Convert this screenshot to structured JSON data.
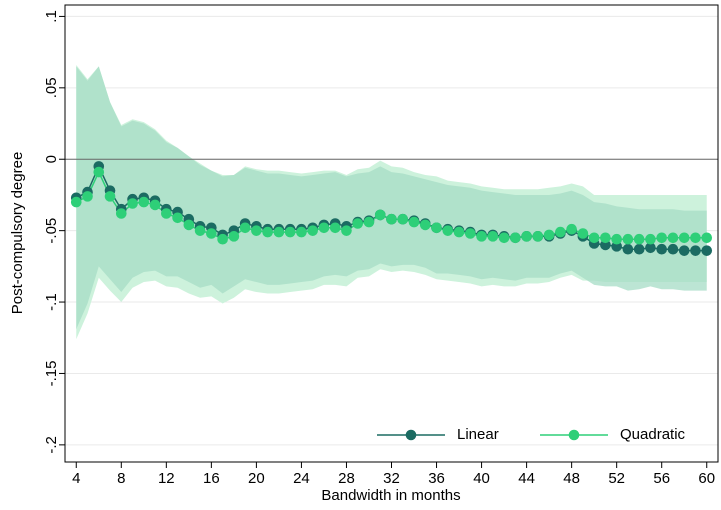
{
  "chart_data": {
    "type": "line",
    "x_label": "Bandwidth in months",
    "y_label": "Post-compulsory degree",
    "x": [
      4,
      5,
      6,
      7,
      8,
      9,
      10,
      11,
      12,
      13,
      14,
      15,
      16,
      17,
      18,
      19,
      20,
      21,
      22,
      23,
      24,
      25,
      26,
      27,
      28,
      29,
      30,
      31,
      32,
      33,
      34,
      35,
      36,
      37,
      38,
      39,
      40,
      41,
      42,
      43,
      44,
      45,
      46,
      47,
      48,
      49,
      50,
      51,
      52,
      53,
      54,
      55,
      56,
      57,
      58,
      59,
      60
    ],
    "series": [
      {
        "name": "Linear",
        "color": "#1b6b62",
        "ci_color": "#a6dcc6",
        "values": [
          -0.027,
          -0.023,
          -0.005,
          -0.022,
          -0.035,
          -0.028,
          -0.027,
          -0.029,
          -0.035,
          -0.037,
          -0.042,
          -0.047,
          -0.048,
          -0.053,
          -0.05,
          -0.045,
          -0.047,
          -0.049,
          -0.049,
          -0.049,
          -0.049,
          -0.048,
          -0.046,
          -0.045,
          -0.047,
          -0.044,
          -0.043,
          -0.039,
          -0.042,
          -0.042,
          -0.043,
          -0.045,
          -0.048,
          -0.049,
          -0.05,
          -0.051,
          -0.053,
          -0.053,
          -0.054,
          -0.055,
          -0.054,
          -0.054,
          -0.054,
          -0.052,
          -0.05,
          -0.054,
          -0.059,
          -0.06,
          -0.061,
          -0.063,
          -0.063,
          -0.062,
          -0.063,
          -0.063,
          -0.064,
          -0.064,
          -0.064
        ],
        "ci_upper": [
          0.065,
          0.055,
          0.065,
          0.04,
          0.023,
          0.027,
          0.025,
          0.02,
          0.012,
          0.008,
          0.002,
          -0.004,
          -0.008,
          -0.012,
          -0.011,
          -0.006,
          -0.008,
          -0.01,
          -0.01,
          -0.011,
          -0.012,
          -0.011,
          -0.01,
          -0.009,
          -0.012,
          -0.01,
          -0.009,
          -0.005,
          -0.009,
          -0.01,
          -0.012,
          -0.014,
          -0.016,
          -0.018,
          -0.019,
          -0.02,
          -0.022,
          -0.023,
          -0.024,
          -0.025,
          -0.025,
          -0.025,
          -0.025,
          -0.024,
          -0.022,
          -0.025,
          -0.03,
          -0.031,
          -0.033,
          -0.034,
          -0.035,
          -0.035,
          -0.035,
          -0.035,
          -0.036,
          -0.036,
          -0.036
        ],
        "ci_lower": [
          -0.119,
          -0.101,
          -0.075,
          -0.084,
          -0.093,
          -0.083,
          -0.079,
          -0.078,
          -0.082,
          -0.082,
          -0.086,
          -0.09,
          -0.088,
          -0.094,
          -0.089,
          -0.084,
          -0.086,
          -0.088,
          -0.088,
          -0.087,
          -0.086,
          -0.085,
          -0.082,
          -0.081,
          -0.082,
          -0.078,
          -0.077,
          -0.073,
          -0.075,
          -0.074,
          -0.074,
          -0.076,
          -0.08,
          -0.08,
          -0.081,
          -0.082,
          -0.084,
          -0.083,
          -0.084,
          -0.085,
          -0.083,
          -0.083,
          -0.083,
          -0.08,
          -0.078,
          -0.083,
          -0.088,
          -0.089,
          -0.089,
          -0.092,
          -0.091,
          -0.089,
          -0.091,
          -0.091,
          -0.092,
          -0.092,
          -0.092
        ]
      },
      {
        "name": "Quadratic",
        "color": "#2ecf78",
        "ci_color": "#cdf2dc",
        "values": [
          -0.03,
          -0.026,
          -0.009,
          -0.026,
          -0.038,
          -0.031,
          -0.03,
          -0.032,
          -0.038,
          -0.041,
          -0.046,
          -0.05,
          -0.052,
          -0.056,
          -0.054,
          -0.048,
          -0.05,
          -0.051,
          -0.051,
          -0.051,
          -0.051,
          -0.05,
          -0.048,
          -0.048,
          -0.05,
          -0.045,
          -0.044,
          -0.039,
          -0.042,
          -0.042,
          -0.044,
          -0.046,
          -0.048,
          -0.05,
          -0.051,
          -0.052,
          -0.054,
          -0.054,
          -0.055,
          -0.055,
          -0.054,
          -0.054,
          -0.053,
          -0.051,
          -0.049,
          -0.052,
          -0.055,
          -0.055,
          -0.056,
          -0.056,
          -0.056,
          -0.056,
          -0.055,
          -0.055,
          -0.055,
          -0.055,
          -0.055
        ],
        "ci_upper": [
          0.066,
          0.056,
          0.065,
          0.04,
          0.024,
          0.028,
          0.026,
          0.021,
          0.013,
          0.008,
          0.002,
          -0.003,
          -0.008,
          -0.011,
          -0.011,
          -0.005,
          -0.007,
          -0.008,
          -0.008,
          -0.009,
          -0.01,
          -0.009,
          -0.008,
          -0.008,
          -0.011,
          -0.007,
          -0.006,
          -0.001,
          -0.005,
          -0.006,
          -0.009,
          -0.011,
          -0.012,
          -0.015,
          -0.016,
          -0.017,
          -0.019,
          -0.02,
          -0.021,
          -0.021,
          -0.021,
          -0.021,
          -0.02,
          -0.019,
          -0.017,
          -0.019,
          -0.025,
          -0.025,
          -0.025,
          -0.025,
          -0.025,
          -0.025,
          -0.025,
          -0.025,
          -0.025,
          -0.025,
          -0.025
        ],
        "ci_lower": [
          -0.126,
          -0.108,
          -0.083,
          -0.092,
          -0.1,
          -0.09,
          -0.086,
          -0.085,
          -0.089,
          -0.09,
          -0.094,
          -0.097,
          -0.096,
          -0.101,
          -0.097,
          -0.091,
          -0.093,
          -0.094,
          -0.094,
          -0.093,
          -0.092,
          -0.091,
          -0.088,
          -0.088,
          -0.089,
          -0.083,
          -0.082,
          -0.077,
          -0.079,
          -0.078,
          -0.079,
          -0.081,
          -0.084,
          -0.085,
          -0.086,
          -0.087,
          -0.089,
          -0.088,
          -0.089,
          -0.089,
          -0.087,
          -0.087,
          -0.086,
          -0.083,
          -0.081,
          -0.085,
          -0.085,
          -0.086,
          -0.086,
          -0.086,
          -0.086,
          -0.086,
          -0.086,
          -0.086,
          -0.086,
          -0.086,
          -0.086
        ]
      }
    ],
    "xlim": [
      3,
      61
    ],
    "xticks": [
      4,
      8,
      12,
      16,
      20,
      24,
      28,
      32,
      36,
      40,
      44,
      48,
      52,
      56,
      60
    ],
    "ylim": [
      -0.212,
      0.108
    ],
    "yticks": [
      {
        "value": 0.1,
        "label": ".1"
      },
      {
        "value": 0.05,
        "label": ".05"
      },
      0,
      {
        "value": -0.05,
        "label": "-.05"
      },
      {
        "value": -0.1,
        "label": "-.1"
      },
      {
        "value": -0.15,
        "label": "-.15"
      },
      {
        "value": -0.2,
        "label": "-.2"
      }
    ],
    "grid": true,
    "hline": 0,
    "legend": "lower right"
  }
}
